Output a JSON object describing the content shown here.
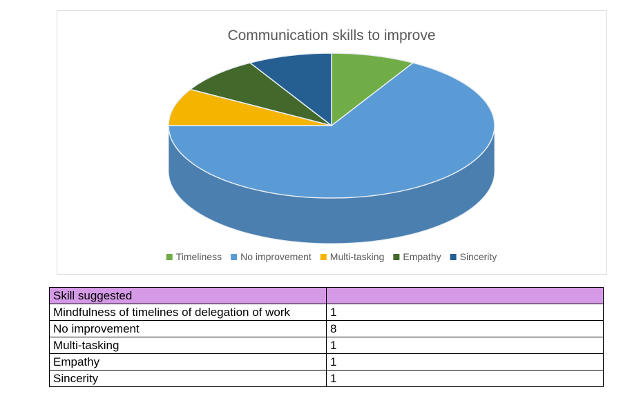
{
  "chart_data": {
    "type": "pie",
    "title": "Communication skills to improve",
    "categories": [
      "Timeliness",
      "No improvement",
      "Multi-tasking",
      "Empathy",
      "Sincerity"
    ],
    "values": [
      1,
      8,
      1,
      1,
      1
    ],
    "colors": [
      "#70ad47",
      "#5b9bd5",
      "#f4b400",
      "#43682b",
      "#255e91"
    ],
    "three_d": true,
    "legend_position": "bottom"
  },
  "table": {
    "header": [
      "Skill suggested",
      ""
    ],
    "rows": [
      [
        "Mindfulness of timelines of delegation of work",
        "1"
      ],
      [
        "No improvement",
        "8"
      ],
      [
        "Multi-tasking",
        "1"
      ],
      [
        "Empathy",
        "1"
      ],
      [
        "Sincerity",
        "1"
      ]
    ]
  }
}
